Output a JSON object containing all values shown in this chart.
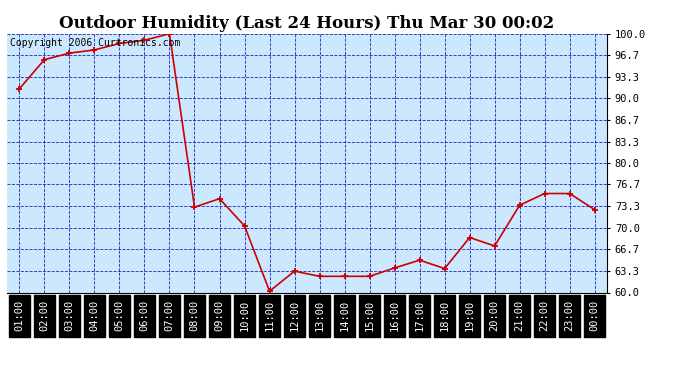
{
  "title": "Outdoor Humidity (Last 24 Hours) Thu Mar 30 00:02",
  "copyright": "Copyright 2006 Curtronics.com",
  "x_labels": [
    "01:00",
    "02:00",
    "03:00",
    "04:00",
    "05:00",
    "06:00",
    "07:00",
    "08:00",
    "09:00",
    "10:00",
    "11:00",
    "12:00",
    "13:00",
    "14:00",
    "15:00",
    "16:00",
    "17:00",
    "18:00",
    "19:00",
    "20:00",
    "21:00",
    "22:00",
    "23:00",
    "00:00"
  ],
  "y_values": [
    91.5,
    96.0,
    97.0,
    97.5,
    98.5,
    99.0,
    100.0,
    73.2,
    74.5,
    70.3,
    60.2,
    63.3,
    62.5,
    62.5,
    62.5,
    63.8,
    65.0,
    63.7,
    68.5,
    67.2,
    73.5,
    75.3,
    75.3,
    72.8
  ],
  "ylim_min": 60.0,
  "ylim_max": 100.0,
  "y_ticks": [
    60.0,
    63.3,
    66.7,
    70.0,
    73.3,
    76.7,
    80.0,
    83.3,
    86.7,
    90.0,
    93.3,
    96.7,
    100.0
  ],
  "line_color": "#cc0000",
  "marker_color": "#cc0000",
  "fig_bg_color": "#ffffff",
  "plot_bg_color": "#cce8ff",
  "grid_color": "#0000bb",
  "xlabel_bg_color": "#000000",
  "xlabel_text_color": "#ffffff",
  "title_fontsize": 12,
  "copyright_fontsize": 7,
  "tick_fontsize": 7.5
}
